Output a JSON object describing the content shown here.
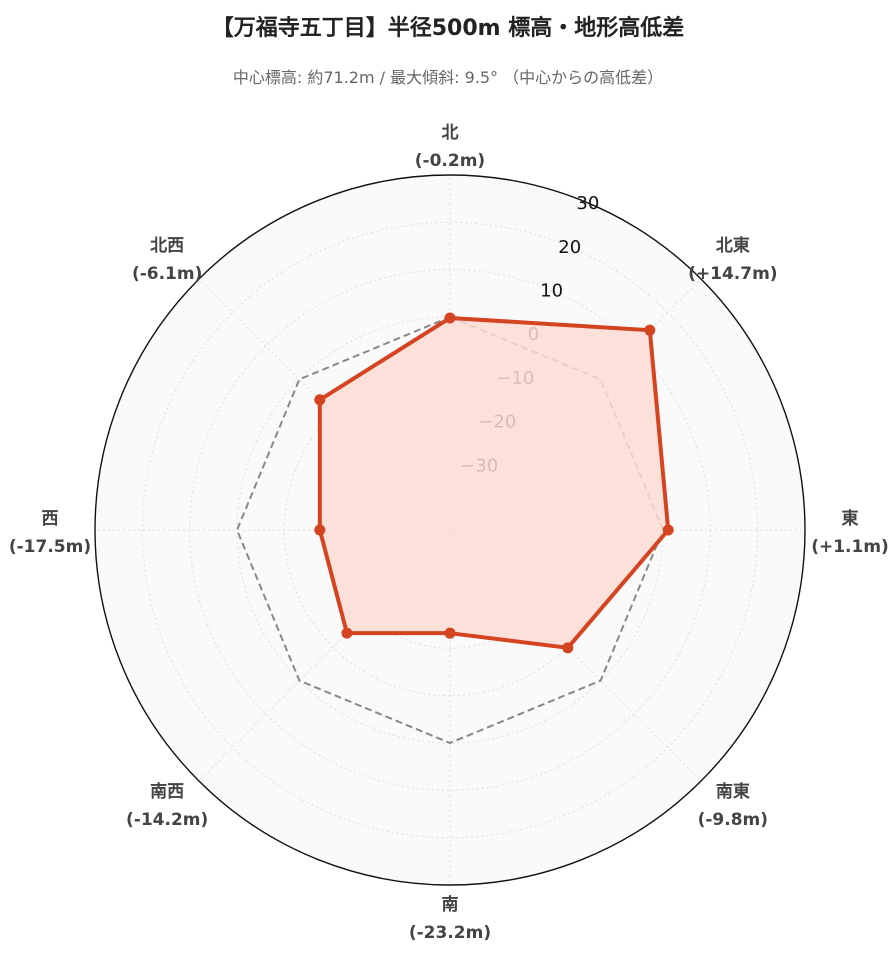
{
  "title": "【万福寺五丁目】半径500m 標高・地形高低差",
  "subtitle": "中心標高: 約71.2m / 最大傾斜: 9.5° （中心からの高低差）",
  "chart_data": {
    "type": "radar",
    "categories": [
      "北",
      "北東",
      "東",
      "南東",
      "南",
      "南西",
      "西",
      "北西"
    ],
    "category_labels": [
      "(-0.2m)",
      "(+14.7m)",
      "(+1.1m)",
      "(-9.8m)",
      "(-23.2m)",
      "(-14.2m)",
      "(-17.5m)",
      "(-6.1m)"
    ],
    "values": [
      -0.2,
      14.7,
      1.1,
      -9.8,
      -23.2,
      -14.2,
      -17.5,
      -6.1
    ],
    "reference_values": [
      0,
      0,
      0,
      0,
      0,
      0,
      0,
      0
    ],
    "rlim": [
      -45,
      30
    ],
    "rticks": [
      -30,
      -20,
      -10,
      0,
      10,
      20,
      30
    ],
    "grid": true,
    "colors": {
      "series_line": "#d44420",
      "series_fill": "#fcdcd3",
      "reference_line": "#888888",
      "background": "#fafafa",
      "grid": "#dddddd",
      "outer": "#111111"
    }
  }
}
